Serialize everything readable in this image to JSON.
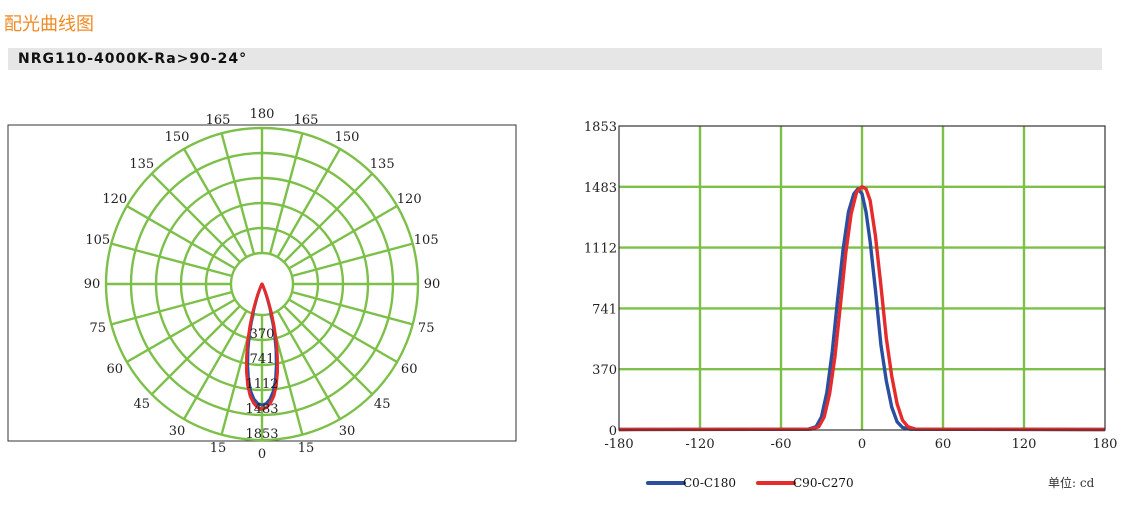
{
  "header": {
    "section_title": "配光曲线图",
    "model": "NRG110-4000K-Ra>90-24°"
  },
  "colors": {
    "grid": "#7cc04a",
    "c0_c180": "#2a4fa0",
    "c90_c270": "#e52b2b",
    "title_accent": "#f08a24"
  },
  "chart_data": [
    {
      "type": "polar",
      "angle_labels_left": [
        "0",
        "15",
        "30",
        "45",
        "60",
        "75",
        "90",
        "105",
        "120",
        "135",
        "150",
        "165",
        "180"
      ],
      "angle_labels_right": [
        "15",
        "30",
        "45",
        "60",
        "75",
        "90",
        "105",
        "120",
        "135",
        "150",
        "165"
      ],
      "radial_ticks": [
        "370",
        "741",
        "1112",
        "1483",
        "1853"
      ],
      "rmax": 1853,
      "series": [
        {
          "name": "C0-C180",
          "color": "#2a4fa0",
          "points": [
            [
              0,
              1440
            ],
            [
              2,
              1420
            ],
            [
              4,
              1370
            ],
            [
              6,
              1280
            ],
            [
              8,
              1150
            ],
            [
              10,
              980
            ],
            [
              12,
              800
            ],
            [
              14,
              620
            ],
            [
              16,
              450
            ],
            [
              18,
              300
            ],
            [
              20,
              180
            ],
            [
              22,
              100
            ],
            [
              25,
              40
            ],
            [
              28,
              15
            ],
            [
              32,
              5
            ],
            [
              40,
              2
            ],
            [
              60,
              1
            ],
            [
              90,
              0
            ]
          ]
        },
        {
          "name": "C90-C270",
          "color": "#e52b2b",
          "points": [
            [
              0,
              1483
            ],
            [
              2,
              1470
            ],
            [
              4,
              1420
            ],
            [
              6,
              1340
            ],
            [
              8,
              1220
            ],
            [
              10,
              1060
            ],
            [
              12,
              880
            ],
            [
              14,
              700
            ],
            [
              16,
              520
            ],
            [
              18,
              360
            ],
            [
              20,
              230
            ],
            [
              22,
              140
            ],
            [
              25,
              60
            ],
            [
              28,
              25
            ],
            [
              32,
              8
            ],
            [
              40,
              3
            ],
            [
              60,
              1
            ],
            [
              90,
              0
            ]
          ]
        }
      ]
    },
    {
      "type": "line",
      "x_ticks": [
        "-180",
        "-120",
        "-60",
        "0",
        "60",
        "120",
        "180"
      ],
      "y_ticks": [
        "0",
        "370",
        "741",
        "1112",
        "1483",
        "1853"
      ],
      "xlim": [
        -180,
        180
      ],
      "ylim": [
        0,
        1853
      ],
      "unit_label": "单位: cd",
      "series": [
        {
          "name": "C0-C180",
          "color": "#2a4fa0",
          "points": [
            [
              -180,
              3
            ],
            [
              -40,
              5
            ],
            [
              -34,
              20
            ],
            [
              -30,
              80
            ],
            [
              -26,
              230
            ],
            [
              -22,
              480
            ],
            [
              -18,
              800
            ],
            [
              -14,
              1100
            ],
            [
              -10,
              1330
            ],
            [
              -6,
              1440
            ],
            [
              -3,
              1470
            ],
            [
              0,
              1440
            ],
            [
              3,
              1330
            ],
            [
              6,
              1150
            ],
            [
              10,
              850
            ],
            [
              14,
              520
            ],
            [
              18,
              300
            ],
            [
              22,
              140
            ],
            [
              26,
              50
            ],
            [
              30,
              15
            ],
            [
              36,
              5
            ],
            [
              180,
              3
            ]
          ]
        },
        {
          "name": "C90-C270",
          "color": "#e52b2b",
          "points": [
            [
              -180,
              3
            ],
            [
              -38,
              5
            ],
            [
              -32,
              20
            ],
            [
              -28,
              80
            ],
            [
              -24,
              220
            ],
            [
              -20,
              450
            ],
            [
              -16,
              760
            ],
            [
              -12,
              1080
            ],
            [
              -8,
              1320
            ],
            [
              -4,
              1450
            ],
            [
              0,
              1483
            ],
            [
              3,
              1470
            ],
            [
              6,
              1400
            ],
            [
              10,
              1180
            ],
            [
              14,
              880
            ],
            [
              18,
              560
            ],
            [
              22,
              330
            ],
            [
              26,
              160
            ],
            [
              30,
              60
            ],
            [
              34,
              20
            ],
            [
              40,
              5
            ],
            [
              180,
              3
            ]
          ]
        }
      ]
    }
  ]
}
